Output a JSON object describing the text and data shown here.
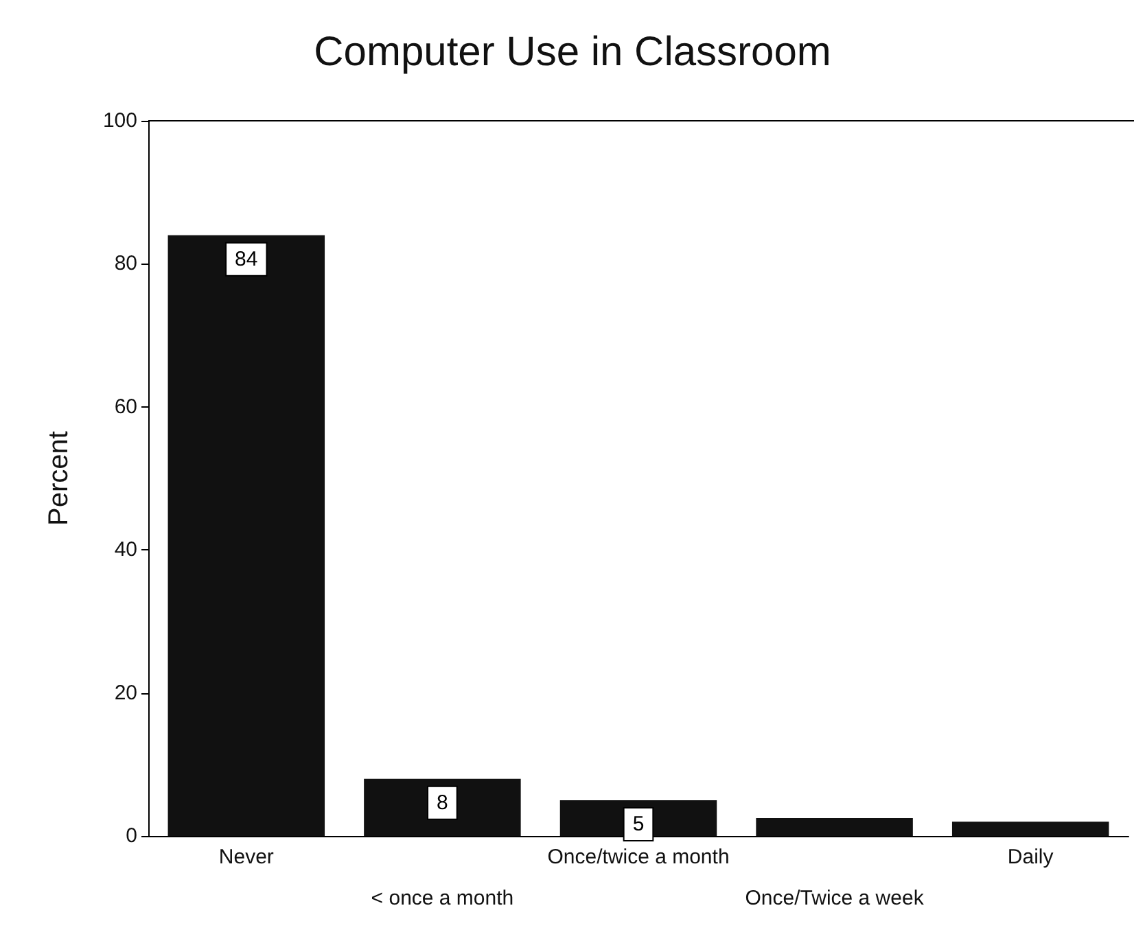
{
  "chart_data": {
    "type": "bar",
    "title": "Computer Use in Classroom",
    "ylabel": "Percent",
    "categories": [
      "Never",
      "< once a month",
      "Once/twice a month",
      "Once/Twice a week",
      "Daily"
    ],
    "values": [
      84,
      8,
      5,
      2.5,
      2
    ],
    "value_labels": [
      "84",
      "8",
      "5",
      null,
      null
    ],
    "color": "#111111",
    "ylim": [
      0,
      100
    ],
    "yticks": [
      0,
      20,
      40,
      60,
      80,
      100
    ],
    "grid": false
  }
}
